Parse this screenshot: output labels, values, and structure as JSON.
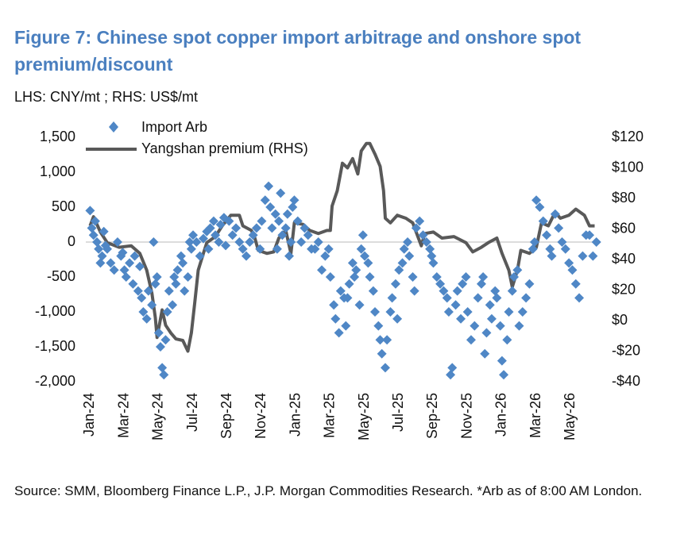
{
  "chart_data": {
    "type": "combo",
    "title": "Figure 7: Chinese spot copper import arbitrage and onshore spot premium/discount",
    "subtitle": "LHS: CNY/mt ; RHS: US$/mt",
    "source": "Source:  SMM, Bloomberg Finance L.P., J.P. Morgan Commodities Research. *Arb as of 8:00 AM London.",
    "xlim": [
      -0.25,
      29.7
    ],
    "xticks": [
      {
        "value": 0,
        "label": "Jan-24"
      },
      {
        "value": 2,
        "label": "Mar-24"
      },
      {
        "value": 4,
        "label": "May-24"
      },
      {
        "value": 6,
        "label": "Jul-24"
      },
      {
        "value": 8,
        "label": "Sep-24"
      },
      {
        "value": 10,
        "label": "Nov-24"
      },
      {
        "value": 12,
        "label": "Jan-25"
      },
      {
        "value": 14,
        "label": "Mar-25"
      },
      {
        "value": 16,
        "label": "May-25"
      },
      {
        "value": 18,
        "label": "Jul-25"
      },
      {
        "value": 20,
        "label": "Sep-25"
      },
      {
        "value": 22,
        "label": "Nov-25"
      },
      {
        "value": 24,
        "label": "Jan-26"
      },
      {
        "value": 26,
        "label": "Mar-26"
      },
      {
        "value": 28,
        "label": "May-26"
      }
    ],
    "ylim": [
      -2000,
      1500
    ],
    "yticks": [
      {
        "value": -2000,
        "label": "-2,000"
      },
      {
        "value": -1500,
        "label": "-1,500"
      },
      {
        "value": -1000,
        "label": "-1,000"
      },
      -500,
      0,
      500,
      {
        "value": 1000,
        "label": "1,000"
      },
      {
        "value": 1500,
        "label": "1,500"
      }
    ],
    "y2lim": [
      -40,
      120
    ],
    "y2ticks": [
      {
        "value": -40,
        "label": "-$40"
      },
      {
        "value": -20,
        "label": "-$20"
      },
      {
        "value": 0,
        "label": "$0"
      },
      {
        "value": 20,
        "label": "$20"
      },
      {
        "value": 40,
        "label": "$40"
      },
      {
        "value": 60,
        "label": "$60"
      },
      {
        "value": 80,
        "label": "$80"
      },
      {
        "value": 100,
        "label": "$100"
      },
      {
        "value": 120,
        "label": "$120"
      }
    ],
    "zero_line": true,
    "series": [
      {
        "name": "Import Arb",
        "type": "scatter",
        "marker": "diamond",
        "color": "#4f87c6",
        "x": [
          0.0,
          0.1,
          0.2,
          0.3,
          0.4,
          0.5,
          0.6,
          0.7,
          0.8,
          0.9,
          1.0,
          1.2,
          1.4,
          1.6,
          1.8,
          1.9,
          2.0,
          2.1,
          2.3,
          2.5,
          2.6,
          2.8,
          2.9,
          3.0,
          3.1,
          3.3,
          3.4,
          3.6,
          3.7,
          3.8,
          3.9,
          4.0,
          4.1,
          4.2,
          4.3,
          4.4,
          4.5,
          4.6,
          4.8,
          4.9,
          5.0,
          5.1,
          5.3,
          5.4,
          5.5,
          5.7,
          5.8,
          5.9,
          6.0,
          6.2,
          6.4,
          6.6,
          6.8,
          6.9,
          7.0,
          7.2,
          7.3,
          7.5,
          7.6,
          7.8,
          7.9,
          8.1,
          8.3,
          8.5,
          8.7,
          8.9,
          9.1,
          9.3,
          9.5,
          9.7,
          9.9,
          10.0,
          10.2,
          10.4,
          10.5,
          10.6,
          10.8,
          10.9,
          11.0,
          11.1,
          11.2,
          11.4,
          11.5,
          11.6,
          11.7,
          11.8,
          11.9,
          12.1,
          12.3,
          12.5,
          12.7,
          12.9,
          13.1,
          13.3,
          13.5,
          13.7,
          13.9,
          14.0,
          14.2,
          14.3,
          14.5,
          14.6,
          14.8,
          14.9,
          15.0,
          15.1,
          15.3,
          15.4,
          15.5,
          15.7,
          15.8,
          15.9,
          16.0,
          16.2,
          16.3,
          16.5,
          16.6,
          16.8,
          16.9,
          17.0,
          17.2,
          17.3,
          17.5,
          17.6,
          17.8,
          17.9,
          18.0,
          18.2,
          18.3,
          18.5,
          18.6,
          18.8,
          18.9,
          19.0,
          19.2,
          19.4,
          19.6,
          19.8,
          19.9,
          20.0,
          20.2,
          20.4,
          20.6,
          20.8,
          20.9,
          21.0,
          21.1,
          21.3,
          21.4,
          21.6,
          21.7,
          21.9,
          22.0,
          22.2,
          22.4,
          22.6,
          22.8,
          22.9,
          23.0,
          23.1,
          23.3,
          23.4,
          23.6,
          23.7,
          23.9,
          24.0,
          24.1,
          24.3,
          24.4,
          24.6,
          24.7,
          24.9,
          25.0,
          25.2,
          25.4,
          25.6,
          25.8,
          25.9,
          26.0,
          26.2,
          26.4,
          26.6,
          26.8,
          26.9,
          27.1,
          27.3,
          27.5,
          27.7,
          27.9,
          28.1,
          28.3,
          28.5,
          28.7,
          28.9,
          29.1,
          29.3,
          29.5
        ],
        "values": [
          450,
          200,
          100,
          300,
          0,
          -100,
          -300,
          -200,
          150,
          -50,
          -100,
          -300,
          -400,
          0,
          -200,
          -150,
          -400,
          -500,
          -300,
          -600,
          -200,
          -700,
          -350,
          -800,
          -1000,
          -1100,
          -700,
          -900,
          0,
          -600,
          -500,
          -1300,
          -1500,
          -1800,
          -1900,
          -1400,
          -1000,
          -700,
          -900,
          -500,
          -600,
          -400,
          -200,
          -300,
          -700,
          -500,
          0,
          -100,
          100,
          0,
          -200,
          50,
          150,
          -100,
          200,
          300,
          100,
          0,
          250,
          350,
          -50,
          300,
          100,
          200,
          0,
          -100,
          -200,
          0,
          100,
          200,
          -100,
          300,
          600,
          800,
          500,
          200,
          400,
          -100,
          300,
          700,
          100,
          200,
          400,
          -200,
          0,
          500,
          600,
          300,
          0,
          200,
          100,
          -100,
          -100,
          0,
          -400,
          -200,
          -100,
          -500,
          -900,
          -1100,
          -1300,
          -700,
          -800,
          -1200,
          -800,
          -600,
          -300,
          -500,
          -400,
          -900,
          -100,
          100,
          -200,
          -300,
          -500,
          -700,
          -1000,
          -1200,
          -1400,
          -1600,
          -1800,
          -1400,
          -1000,
          -800,
          -600,
          -1100,
          -400,
          -300,
          -100,
          0,
          -200,
          -500,
          -700,
          200,
          300,
          100,
          0,
          -100,
          -200,
          -300,
          -500,
          -600,
          -700,
          -800,
          -1000,
          -1900,
          -1800,
          -900,
          -700,
          -1100,
          -600,
          -500,
          -1000,
          -1400,
          -1200,
          -800,
          -600,
          -500,
          -1600,
          -1300,
          -900,
          -1100,
          -700,
          -800,
          -1200,
          -1700,
          -1900,
          -1400,
          -1000,
          -700,
          -500,
          -400,
          -1200,
          -1000,
          -800,
          -600,
          -100,
          0,
          600,
          500,
          300,
          100,
          -100,
          -200,
          400,
          200,
          0,
          -100,
          -300,
          -400,
          -600,
          -800,
          -200,
          100,
          100,
          -200,
          0
        ]
      },
      {
        "name": "Yangshan premium (RHS)",
        "type": "line",
        "axis": "y2",
        "color": "#595959",
        "x": [
          0,
          0.2,
          0.6,
          1.0,
          1.7,
          2.4,
          2.9,
          3.3,
          3.6,
          3.8,
          3.9,
          4.2,
          4.4,
          4.7,
          5.0,
          5.4,
          5.7,
          5.9,
          6.1,
          6.3,
          6.6,
          6.8,
          7.3,
          7.7,
          8.2,
          8.7,
          8.9,
          9.4,
          9.6,
          9.8,
          10.3,
          10.7,
          11.0,
          11.4,
          11.7,
          11.9,
          12.4,
          12.8,
          13.3,
          13.8,
          14.0,
          14.1,
          14.4,
          14.7,
          15.0,
          15.3,
          15.6,
          15.8,
          16.1,
          16.3,
          16.6,
          16.9,
          17.1,
          17.2,
          17.5,
          17.9,
          18.4,
          18.8,
          19.3,
          19.5,
          20.0,
          20.5,
          21.2,
          21.9,
          22.3,
          22.8,
          23.2,
          23.7,
          24.0,
          24.4,
          24.6,
          24.9,
          25.1,
          25.6,
          26.0,
          26.3,
          26.7,
          27.1,
          27.4,
          27.9,
          28.3,
          28.8,
          29.1,
          29.4
        ],
        "values": [
          62,
          68,
          58,
          51,
          48,
          49,
          44,
          33,
          18,
          2,
          -11,
          7,
          -3,
          -8,
          -12,
          -13,
          -20,
          -8,
          12,
          33,
          44,
          51,
          55,
          62,
          69,
          69,
          62,
          59,
          54,
          46,
          44,
          45,
          54,
          59,
          44,
          64,
          63,
          59,
          57,
          59,
          59,
          75,
          85,
          103,
          100,
          106,
          96,
          111,
          116,
          116,
          109,
          101,
          85,
          67,
          64,
          69,
          67,
          64,
          49,
          57,
          58,
          54,
          55,
          51,
          45,
          48,
          51,
          54,
          44,
          33,
          22,
          33,
          46,
          44,
          48,
          64,
          62,
          71,
          67,
          69,
          73,
          69,
          62,
          62
        ]
      }
    ]
  }
}
